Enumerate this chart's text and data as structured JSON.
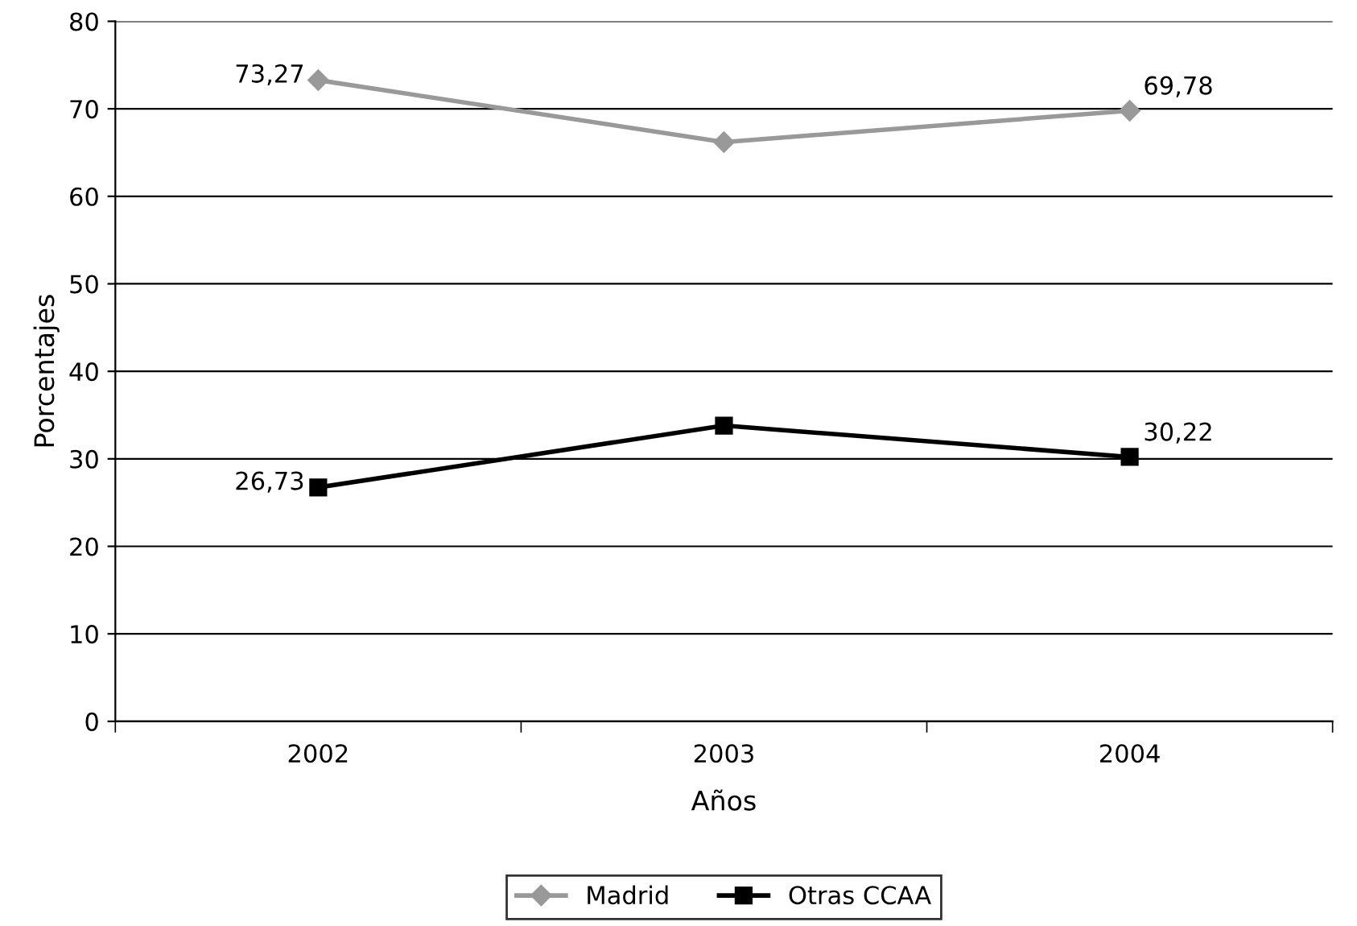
{
  "chart_data": {
    "type": "line",
    "xlabel": "Años",
    "ylabel": "Porcentajes",
    "categories": [
      "2002",
      "2003",
      "2004"
    ],
    "series": [
      {
        "name": "Madrid",
        "color": "#999999",
        "marker": "diamond",
        "values": [
          73.27,
          66.2,
          69.78
        ],
        "value_labels": [
          "73,27",
          null,
          "69,78"
        ]
      },
      {
        "name": "Otras CCAA",
        "color": "#000000",
        "marker": "square",
        "values": [
          26.73,
          33.8,
          30.22
        ],
        "value_labels": [
          "26,73",
          null,
          "30,22"
        ]
      }
    ],
    "ylim": [
      0,
      80
    ],
    "yticks": [
      0,
      10,
      20,
      30,
      40,
      50,
      60,
      70,
      80
    ],
    "grid": "y",
    "legend": "bottom",
    "line_style": "solid"
  }
}
